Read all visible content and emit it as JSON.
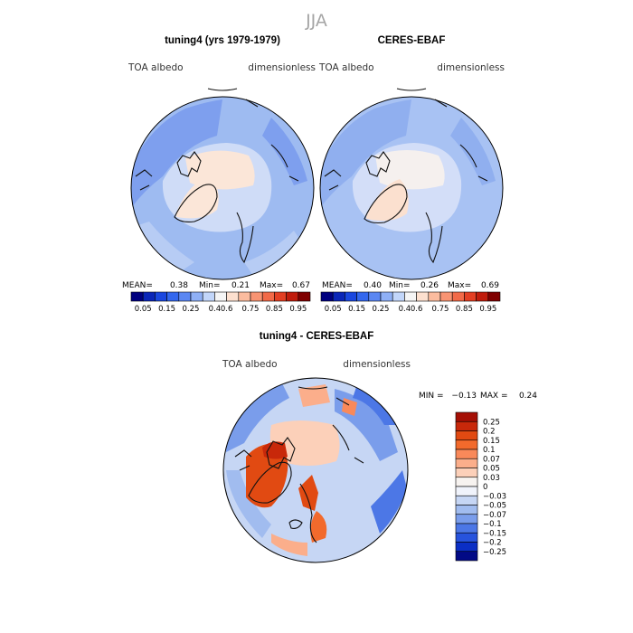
{
  "page": {
    "season_title": "JJA"
  },
  "chart_data": [
    {
      "type": "heatmap",
      "title": "tuning4 (yrs 1979-1979)",
      "variable": "TOA albedo",
      "units": "dimensionless",
      "projection": "north polar stereographic",
      "stats": {
        "mean_label": "MEAN=",
        "mean": "0.38",
        "min_label": "Min=",
        "min": "0.21",
        "max_label": "Max=",
        "max": "0.67"
      },
      "colorbar": {
        "ticks": [
          "0.05",
          "0.15",
          "0.25",
          "0.4",
          "0.6",
          "0.75",
          "0.85",
          "0.95"
        ],
        "colors": [
          "#00007f",
          "#0a26b8",
          "#1a47df",
          "#3367ee",
          "#5b87f2",
          "#8fb0f6",
          "#c2d6fa",
          "#f5f5f5",
          "#fde0cf",
          "#fbbc9f",
          "#f89473",
          "#f26a48",
          "#e33f23",
          "#c01c0c",
          "#7f0000"
        ]
      }
    },
    {
      "type": "heatmap",
      "title": "CERES-EBAF",
      "variable": "TOA albedo",
      "units": "dimensionless",
      "projection": "north polar stereographic",
      "stats": {
        "mean_label": "MEAN=",
        "mean": "0.40",
        "min_label": "Min=",
        "min": "0.26",
        "max_label": "Max=",
        "max": "0.69"
      },
      "colorbar": {
        "ticks": [
          "0.05",
          "0.15",
          "0.25",
          "0.4",
          "0.6",
          "0.75",
          "0.85",
          "0.95"
        ],
        "colors": [
          "#00007f",
          "#0a26b8",
          "#1a47df",
          "#3367ee",
          "#5b87f2",
          "#8fb0f6",
          "#c2d6fa",
          "#f5f5f5",
          "#fde0cf",
          "#fbbc9f",
          "#f89473",
          "#f26a48",
          "#e33f23",
          "#c01c0c",
          "#7f0000"
        ]
      }
    },
    {
      "type": "heatmap",
      "title": "tuning4 - CERES-EBAF",
      "variable": "TOA albedo",
      "units": "dimensionless",
      "projection": "north polar stereographic",
      "stats": {
        "min_label": "MIN =",
        "min": "−0.13",
        "max_label": "MAX =",
        "max": "0.24"
      },
      "colorbar": {
        "ticks": [
          "0.25",
          "0.2",
          "0.15",
          "0.1",
          "0.07",
          "0.05",
          "0.03",
          "0",
          "−0.03",
          "−0.05",
          "−0.07",
          "−0.1",
          "−0.15",
          "−0.2",
          "−0.25"
        ],
        "colors": [
          "#a50f05",
          "#c8280a",
          "#e14a12",
          "#f26a2c",
          "#f9895a",
          "#fbae8b",
          "#fcd0b9",
          "#f7f3f0",
          "#f0f3fb",
          "#c6d6f4",
          "#a1bcef",
          "#7a9deb",
          "#4c77e6",
          "#2753dd",
          "#0b2fc5",
          "#020a86"
        ]
      }
    }
  ]
}
